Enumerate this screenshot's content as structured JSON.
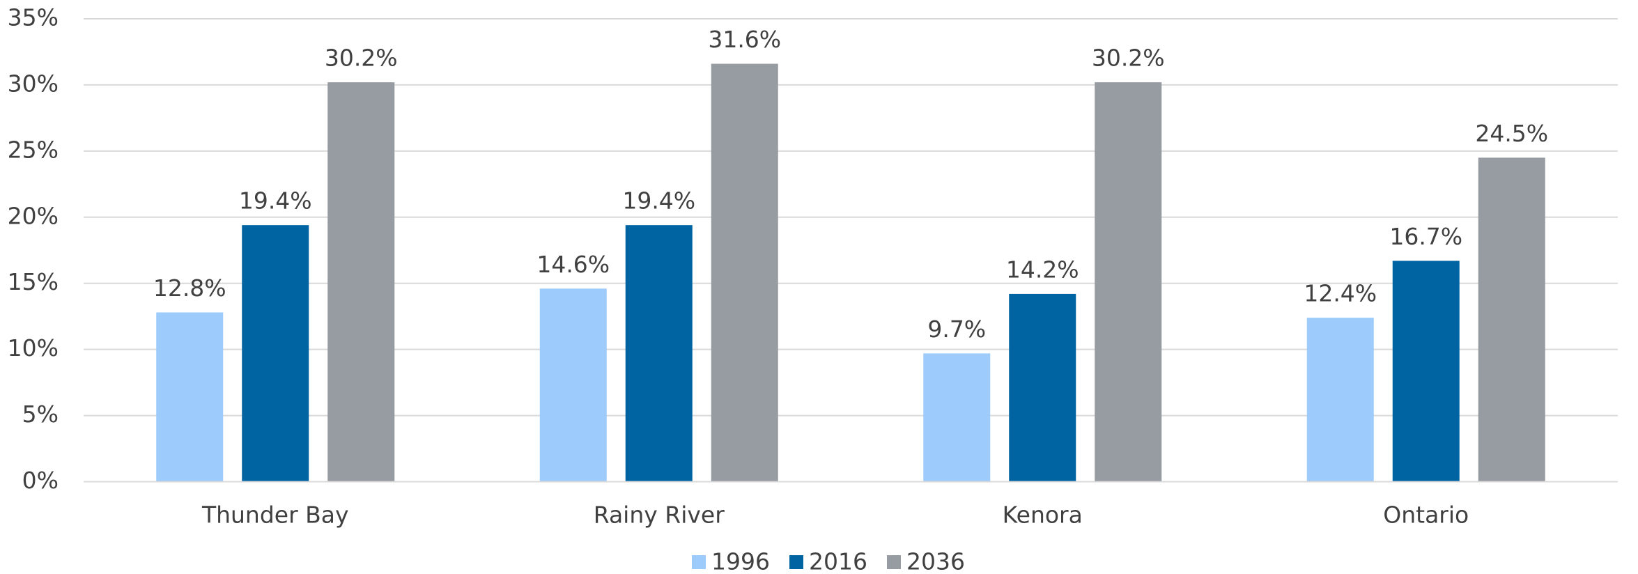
{
  "chart_data": {
    "type": "bar",
    "categories": [
      "Thunder Bay",
      "Rainy River",
      "Kenora",
      "Ontario"
    ],
    "series": [
      {
        "name": "1996",
        "color": "#9dcbfb",
        "values": [
          12.8,
          14.6,
          9.7,
          12.4
        ],
        "value_labels": [
          "12.8%",
          "14.6%",
          "9.7%",
          "12.4%"
        ]
      },
      {
        "name": "2016",
        "color": "#0064a3",
        "values": [
          19.4,
          19.4,
          14.2,
          16.7
        ],
        "value_labels": [
          "19.4%",
          "19.4%",
          "14.2%",
          "16.7%"
        ]
      },
      {
        "name": "2036",
        "color": "#969ca2",
        "values": [
          30.2,
          31.6,
          30.2,
          24.5
        ],
        "value_labels": [
          "30.2%",
          "31.6%",
          "30.2%",
          "24.5%"
        ]
      }
    ],
    "ylim": [
      0,
      35
    ],
    "yticks": [
      {
        "value": 0,
        "label": "0%"
      },
      {
        "value": 5,
        "label": "5%"
      },
      {
        "value": 10,
        "label": "10%"
      },
      {
        "value": 15,
        "label": "15%"
      },
      {
        "value": 20,
        "label": "20%"
      },
      {
        "value": 25,
        "label": "25%"
      },
      {
        "value": 30,
        "label": "30%"
      },
      {
        "value": 35,
        "label": "35%"
      }
    ],
    "grid": true,
    "legend": "bottom"
  }
}
